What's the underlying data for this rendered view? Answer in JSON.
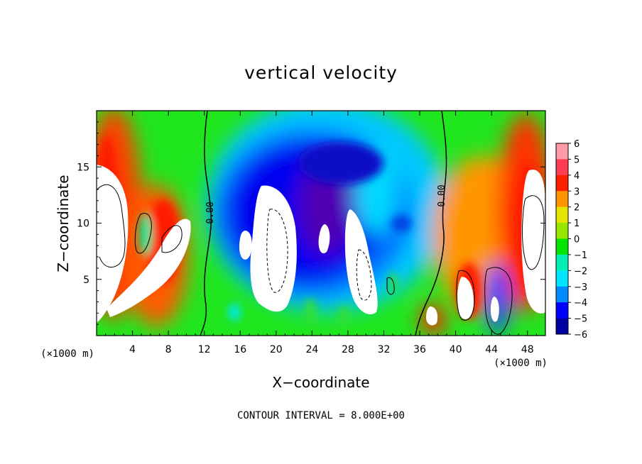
{
  "chart_data": {
    "type": "heatmap",
    "title": "vertical velocity",
    "xlabel": "X−coordinate",
    "ylabel": "Z−coordinate",
    "x_unit_label": "(×1000 m)",
    "xlim": [
      0,
      50
    ],
    "ylim": [
      0,
      20
    ],
    "x_ticks": [
      4,
      8,
      12,
      16,
      20,
      24,
      28,
      32,
      36,
      40,
      44,
      48
    ],
    "y_ticks": [
      5,
      10,
      15
    ],
    "colorbar": {
      "ticks": [
        6,
        5,
        4,
        3,
        2,
        1,
        0,
        -1,
        -2,
        -3,
        -4,
        -5,
        -6
      ],
      "tick_labels": [
        "6",
        "5",
        "4",
        "3",
        "2",
        "1",
        "0",
        "−1",
        "−2",
        "−3",
        "−4",
        "−5",
        "−6"
      ],
      "colors": {
        "6": "#ff9aa6",
        "5": "#ff3c50",
        "4": "#ff1e00",
        "3": "#ff9600",
        "2": "#e6e600",
        "1": "#96e600",
        "0": "#00e600",
        "-1": "#00f0b4",
        "-2": "#00e6ff",
        "-3": "#008cff",
        "-4": "#0000ff",
        "-5": "#0000a0",
        "-6": "#8c00c8"
      }
    },
    "contour_labels": [
      "0.00",
      "0.00"
    ],
    "contour_interval_text": "CONTOUR INTERVAL = 8.000E+00",
    "features": [
      {
        "kind": "updraft",
        "x": [
          0,
          3
        ],
        "z": [
          4,
          17
        ],
        "w_max": "> 6"
      },
      {
        "kind": "updraft",
        "x": [
          4,
          9
        ],
        "z": [
          1,
          12
        ],
        "w_max": "> 6"
      },
      {
        "kind": "downdraft",
        "x": [
          13,
          34
        ],
        "z": [
          1,
          19
        ],
        "w_min": "< -6"
      },
      {
        "kind": "white_region",
        "x": [
          17,
          21
        ],
        "z": [
          2,
          13
        ]
      },
      {
        "kind": "white_region",
        "x": [
          27,
          31
        ],
        "z": [
          2,
          12
        ]
      },
      {
        "kind": "updraft",
        "x": [
          38,
          47
        ],
        "z": [
          1,
          13
        ],
        "w_max": "> 6"
      },
      {
        "kind": "updraft",
        "x": [
          46,
          50
        ],
        "z": [
          2,
          15
        ],
        "w_max": "> 6"
      }
    ]
  }
}
